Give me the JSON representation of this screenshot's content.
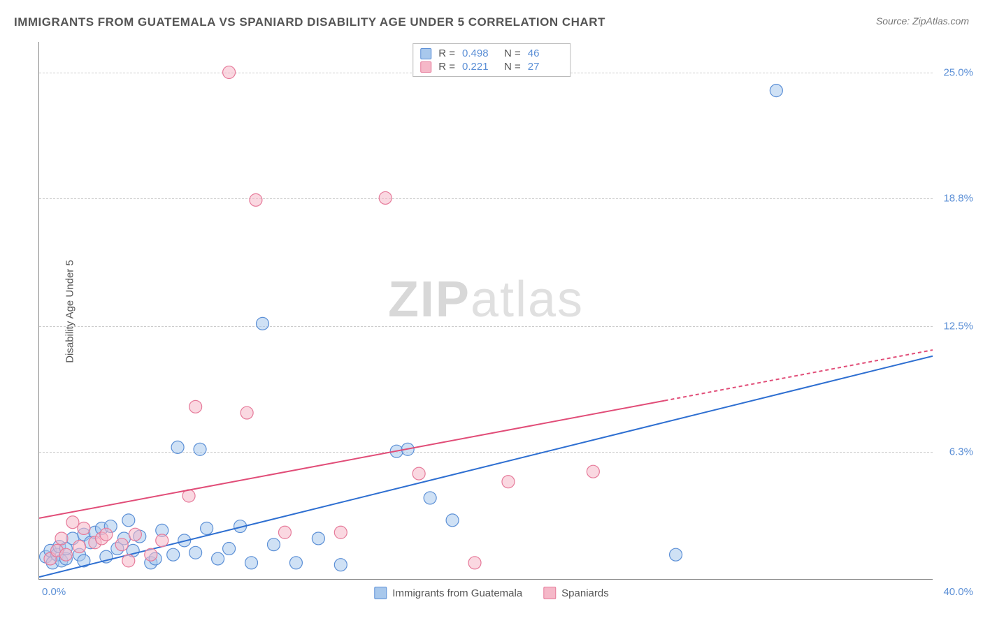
{
  "title": "IMMIGRANTS FROM GUATEMALA VS SPANIARD DISABILITY AGE UNDER 5 CORRELATION CHART",
  "source": "Source: ZipAtlas.com",
  "ylabel": "Disability Age Under 5",
  "watermark_light": "ZIP",
  "watermark_rest": "atlas",
  "chart": {
    "type": "scatter",
    "xlim": [
      0,
      40
    ],
    "ylim": [
      0,
      26.5
    ],
    "yticks": [
      {
        "v": 6.3,
        "label": "6.3%"
      },
      {
        "v": 12.5,
        "label": "12.5%"
      },
      {
        "v": 18.8,
        "label": "18.8%"
      },
      {
        "v": 25.0,
        "label": "25.0%"
      }
    ],
    "xticks": {
      "left": "0.0%",
      "right": "40.0%"
    },
    "background_color": "#ffffff",
    "grid_color": "#cccccc",
    "marker_radius": 9,
    "series": [
      {
        "name": "Immigrants from Guatemala",
        "fill": "#a8c8ec",
        "stroke": "#5b8fd6",
        "fill_opacity": 0.55,
        "line_color": "#2e6fd1",
        "line_width": 2,
        "line_from": [
          0,
          0.1
        ],
        "line_to": [
          40,
          11.0
        ],
        "R": "0.498",
        "N": "46",
        "points": [
          [
            0.3,
            1.1
          ],
          [
            0.5,
            1.4
          ],
          [
            0.6,
            0.8
          ],
          [
            0.8,
            1.2
          ],
          [
            0.9,
            1.6
          ],
          [
            1.0,
            0.9
          ],
          [
            1.2,
            1.0
          ],
          [
            1.2,
            1.5
          ],
          [
            1.5,
            2.0
          ],
          [
            1.8,
            1.2
          ],
          [
            2.0,
            0.9
          ],
          [
            2.0,
            2.2
          ],
          [
            2.3,
            1.8
          ],
          [
            2.5,
            2.3
          ],
          [
            2.8,
            2.5
          ],
          [
            3.0,
            1.1
          ],
          [
            3.2,
            2.6
          ],
          [
            3.5,
            1.5
          ],
          [
            3.8,
            2.0
          ],
          [
            4.0,
            2.9
          ],
          [
            4.2,
            1.4
          ],
          [
            4.5,
            2.1
          ],
          [
            5.0,
            0.8
          ],
          [
            5.2,
            1.0
          ],
          [
            5.5,
            2.4
          ],
          [
            6.0,
            1.2
          ],
          [
            6.2,
            6.5
          ],
          [
            6.5,
            1.9
          ],
          [
            7.0,
            1.3
          ],
          [
            7.2,
            6.4
          ],
          [
            7.5,
            2.5
          ],
          [
            8.0,
            1.0
          ],
          [
            8.5,
            1.5
          ],
          [
            9.0,
            2.6
          ],
          [
            9.5,
            0.8
          ],
          [
            10.0,
            12.6
          ],
          [
            10.5,
            1.7
          ],
          [
            11.5,
            0.8
          ],
          [
            12.5,
            2.0
          ],
          [
            13.5,
            0.7
          ],
          [
            16.0,
            6.3
          ],
          [
            16.5,
            6.4
          ],
          [
            17.5,
            4.0
          ],
          [
            18.5,
            2.9
          ],
          [
            28.5,
            1.2
          ],
          [
            33.0,
            24.1
          ]
        ]
      },
      {
        "name": "Spaniards",
        "fill": "#f5b8c8",
        "stroke": "#e67a9a",
        "fill_opacity": 0.55,
        "line_color": "#e14d78",
        "line_width": 2,
        "line_from": [
          0,
          3.0
        ],
        "line_to": [
          28,
          8.8
        ],
        "line_dash_from": [
          28,
          8.8
        ],
        "line_dash_to": [
          40,
          11.3
        ],
        "R": "0.221",
        "N": "27",
        "points": [
          [
            0.5,
            1.0
          ],
          [
            0.8,
            1.4
          ],
          [
            1.0,
            2.0
          ],
          [
            1.2,
            1.2
          ],
          [
            1.5,
            2.8
          ],
          [
            1.8,
            1.6
          ],
          [
            2.0,
            2.5
          ],
          [
            2.5,
            1.8
          ],
          [
            2.8,
            2.0
          ],
          [
            3.0,
            2.2
          ],
          [
            3.7,
            1.7
          ],
          [
            4.0,
            0.9
          ],
          [
            4.3,
            2.2
          ],
          [
            5.0,
            1.2
          ],
          [
            5.5,
            1.9
          ],
          [
            6.7,
            4.1
          ],
          [
            7.0,
            8.5
          ],
          [
            8.5,
            25.0
          ],
          [
            9.3,
            8.2
          ],
          [
            9.7,
            18.7
          ],
          [
            11.0,
            2.3
          ],
          [
            13.5,
            2.3
          ],
          [
            15.5,
            18.8
          ],
          [
            17.0,
            5.2
          ],
          [
            19.5,
            0.8
          ],
          [
            21.0,
            4.8
          ],
          [
            24.8,
            5.3
          ]
        ]
      }
    ]
  },
  "legend": [
    {
      "label": "Immigrants from Guatemala",
      "fill": "#a8c8ec",
      "stroke": "#5b8fd6"
    },
    {
      "label": "Spaniards",
      "fill": "#f5b8c8",
      "stroke": "#e67a9a"
    }
  ]
}
